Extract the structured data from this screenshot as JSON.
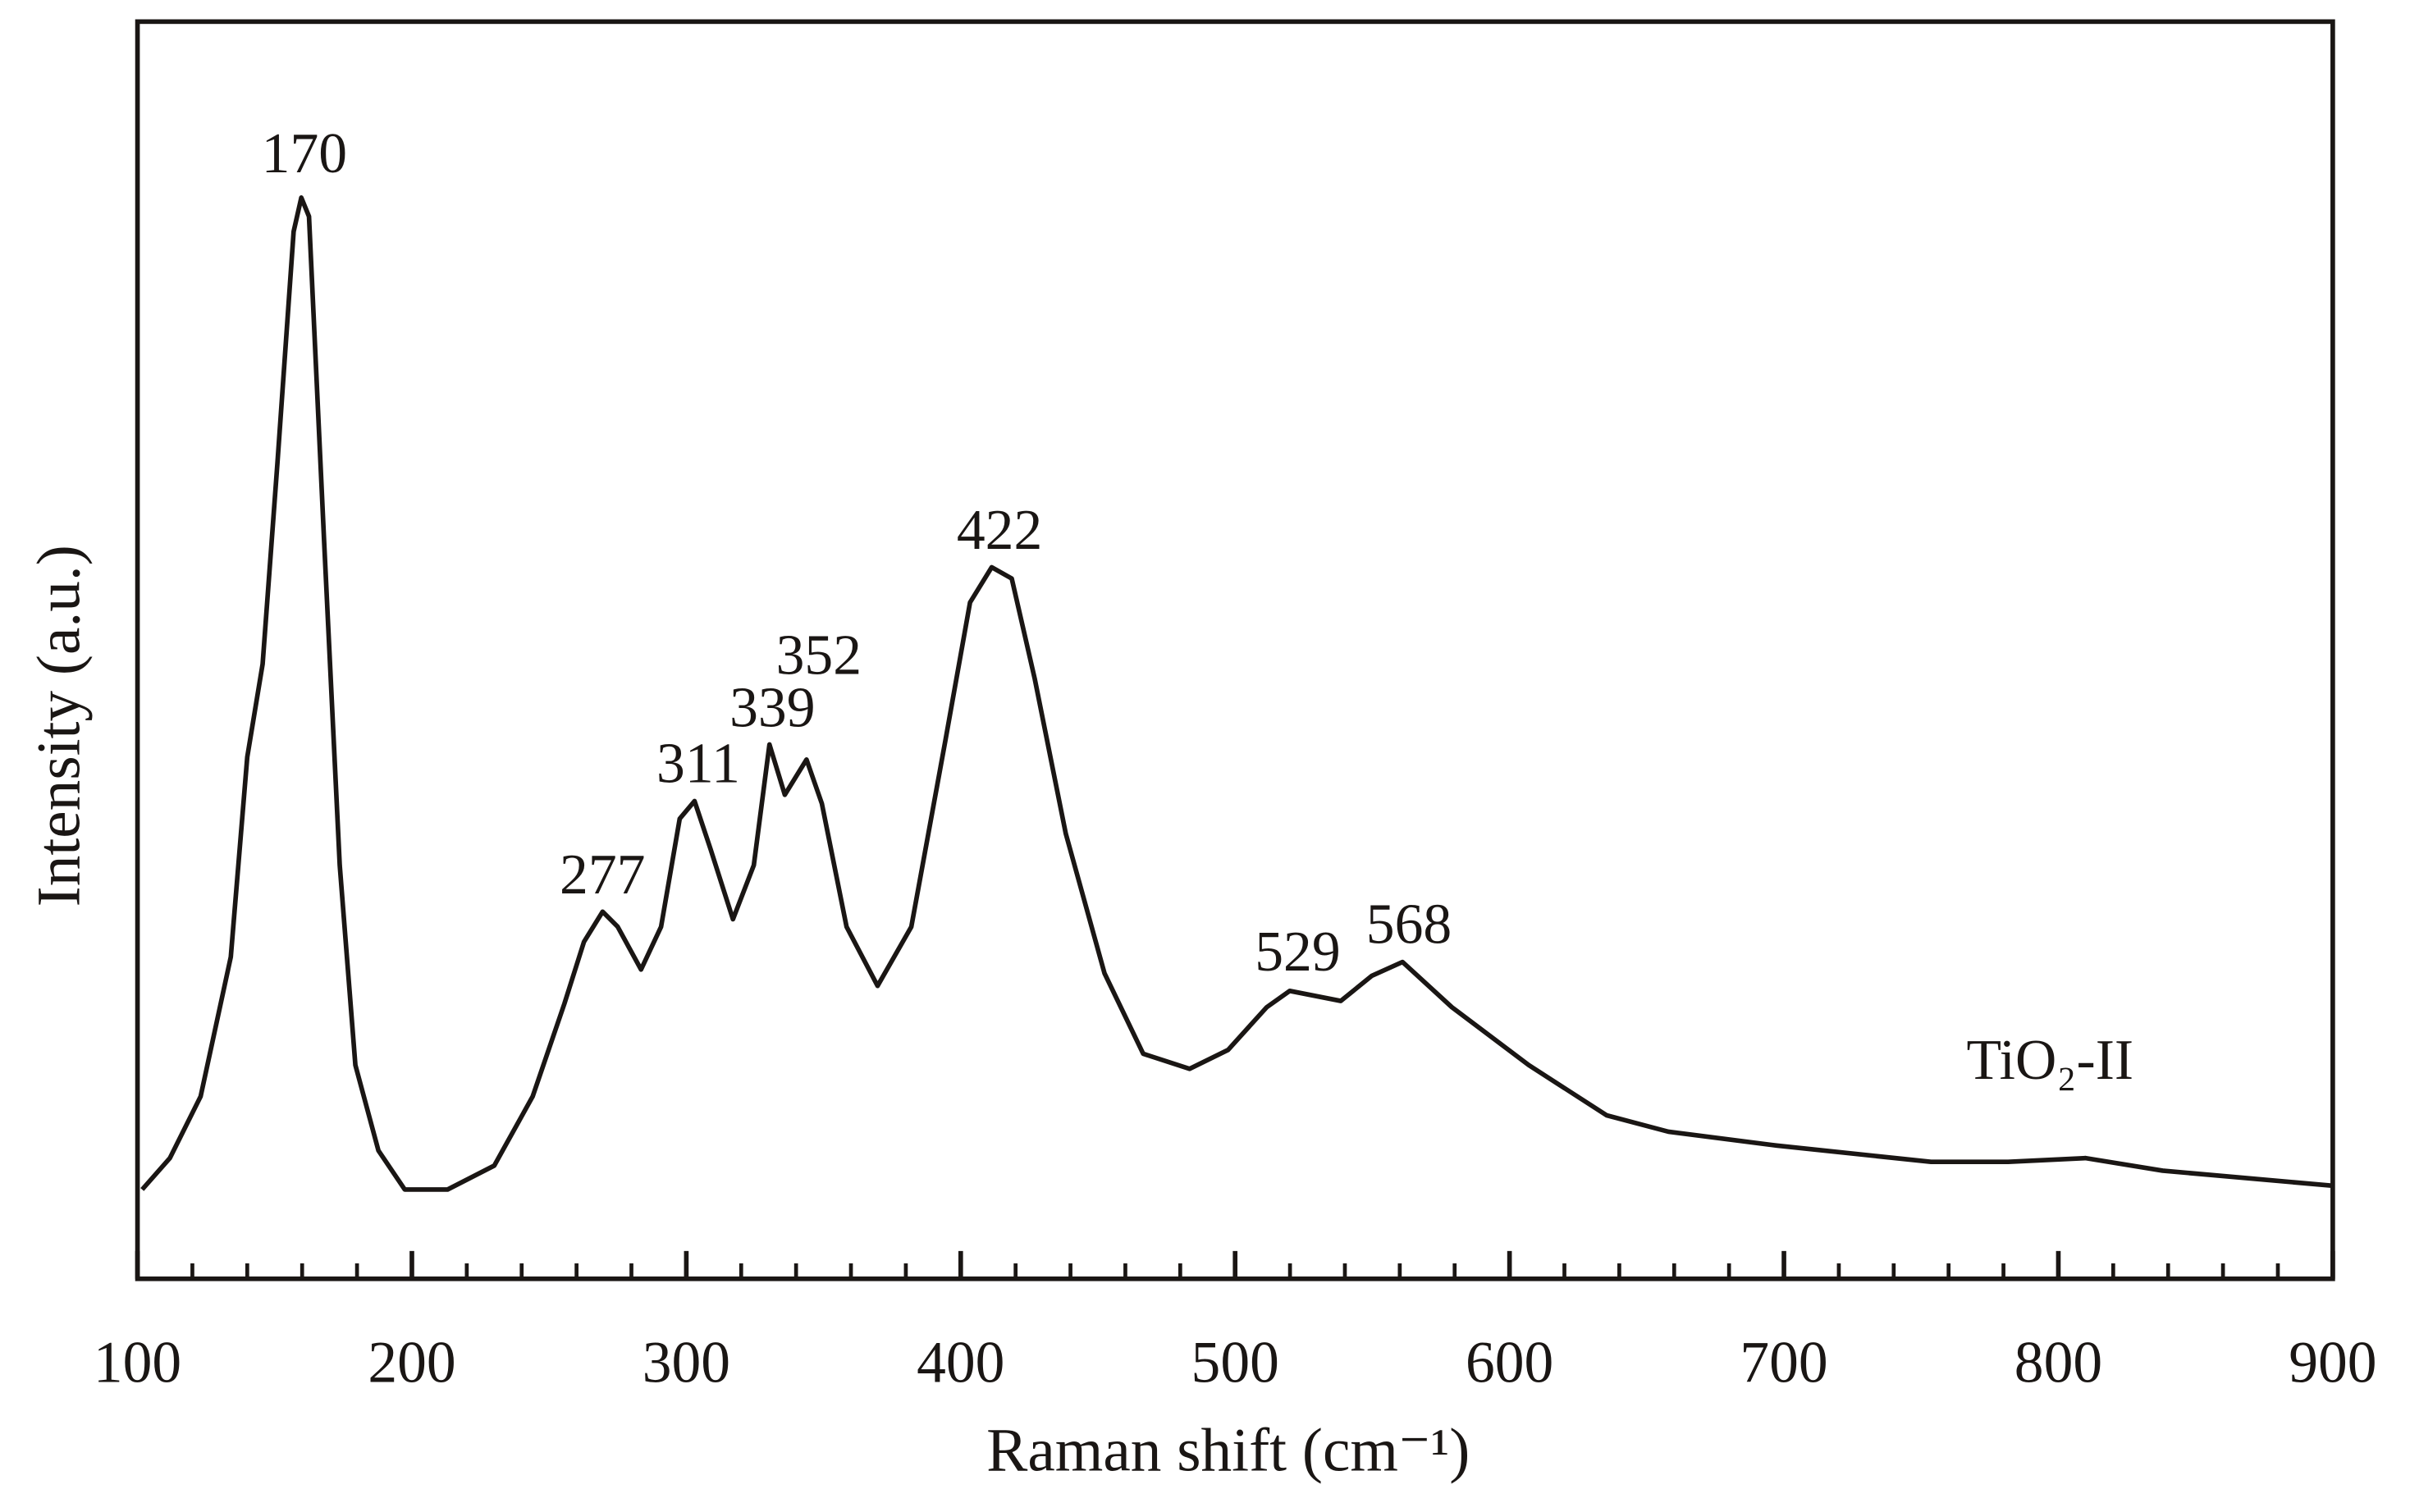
{
  "chart_data": {
    "type": "line",
    "xlabel": "Raman shift (cm⁻¹)",
    "ylabel": "Intensity (a.u.)",
    "xlim": [
      100,
      900
    ],
    "ylim": [
      0,
      100
    ],
    "xticks": [
      100,
      200,
      300,
      400,
      500,
      600,
      700,
      800,
      900
    ],
    "xminorticks": [
      120,
      140,
      160,
      180,
      220,
      240,
      260,
      280,
      320,
      340,
      360,
      380,
      420,
      440,
      460,
      480,
      520,
      540,
      560,
      580,
      620,
      640,
      660,
      680,
      720,
      740,
      760,
      780,
      820,
      840,
      860,
      880
    ],
    "annotations": [
      "170",
      "277",
      "311",
      "339",
      "352",
      "422",
      "529",
      "568",
      "TiO₂-II"
    ],
    "series": [
      {
        "name": "TiO₂-II",
        "color": "#1a1614",
        "x": [
          101.7,
          111.8,
          123,
          134,
          140,
          145.6,
          151,
          156.9,
          159.7,
          162.5,
          168,
          173.7,
          179.4,
          187.8,
          197.4,
          213,
          230,
          244,
          255.6,
          262.7,
          269.5,
          275,
          283.5,
          290.8,
          297.6,
          303,
          308.8,
          317,
          324.6,
          330.3,
          335.9,
          343.8,
          349.4,
          358.4,
          369.7,
          382,
          394.4,
          403.4,
          411.3,
          418.6,
          427,
          438.3,
          452.4,
          466.5,
          483.4,
          497.4,
          511.5,
          519.9,
          538.5,
          549.8,
          561,
          579,
          607,
          635.4,
          657.9,
          697.3,
          753.6,
          781.7,
          809.9,
          838,
          900
        ],
        "values": [
          7.1,
          9.6,
          14.5,
          25.6,
          41.5,
          48.9,
          64.9,
          83.3,
          86,
          84.5,
          58.7,
          32.9,
          17,
          10.2,
          7.1,
          7.1,
          9,
          14.5,
          21.9,
          26.8,
          29.2,
          28,
          24.6,
          28,
          36.6,
          38,
          34.2,
          28.6,
          32.9,
          42.5,
          38.5,
          41.3,
          37.8,
          28,
          23.3,
          28,
          42.8,
          53.8,
          56.6,
          55.7,
          47.7,
          35.4,
          24.3,
          17.9,
          16.7,
          18.2,
          21.6,
          22.9,
          22.1,
          24.1,
          25.2,
          21.6,
          17,
          13,
          11.7,
          10.6,
          9.3,
          9.3,
          9.6,
          8.6,
          7.4
        ]
      }
    ]
  }
}
